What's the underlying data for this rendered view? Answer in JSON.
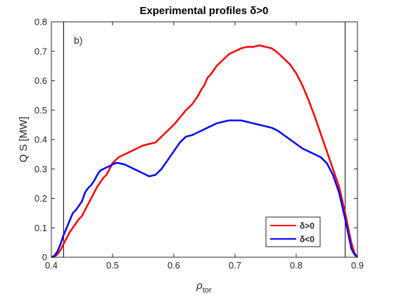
{
  "chart_data": {
    "type": "line",
    "title": "Experimental profiles δ>0",
    "panel_label": "b)",
    "xlabel_main": "ρ",
    "xlabel_sub": "tor",
    "ylabel": "Q S [MW]",
    "xlim": [
      0.4,
      0.9
    ],
    "ylim": [
      0,
      0.8
    ],
    "xticks": [
      0.4,
      0.5,
      0.6,
      0.7,
      0.8,
      0.9
    ],
    "xtick_labels": [
      "0.4",
      "0.5",
      "0.6",
      "0.7",
      "0.8",
      "0.9"
    ],
    "yticks": [
      0,
      0.1,
      0.2,
      0.3,
      0.4,
      0.5,
      0.6,
      0.7,
      0.8
    ],
    "ytick_labels": [
      "0",
      "0.1",
      "0.2",
      "0.3",
      "0.4",
      "0.5",
      "0.6",
      "0.7",
      "0.8"
    ],
    "vlines": [
      0.42,
      0.88
    ],
    "grid": false,
    "legend_position": "bottom-right",
    "series": [
      {
        "name": "δ>0",
        "color": "#ff0000",
        "x": [
          0.4,
          0.405,
          0.41,
          0.415,
          0.42,
          0.425,
          0.43,
          0.435,
          0.44,
          0.445,
          0.45,
          0.455,
          0.46,
          0.465,
          0.47,
          0.475,
          0.48,
          0.485,
          0.49,
          0.495,
          0.5,
          0.505,
          0.51,
          0.52,
          0.53,
          0.54,
          0.55,
          0.56,
          0.57,
          0.58,
          0.59,
          0.6,
          0.61,
          0.62,
          0.63,
          0.635,
          0.64,
          0.645,
          0.65,
          0.655,
          0.66,
          0.67,
          0.68,
          0.69,
          0.7,
          0.71,
          0.72,
          0.73,
          0.74,
          0.75,
          0.76,
          0.77,
          0.78,
          0.79,
          0.8,
          0.81,
          0.82,
          0.83,
          0.84,
          0.85,
          0.86,
          0.87,
          0.875,
          0.88,
          0.885,
          0.89,
          0.895,
          0.9
        ],
        "values": [
          0.0,
          0.002,
          0.01,
          0.025,
          0.045,
          0.065,
          0.085,
          0.1,
          0.115,
          0.13,
          0.14,
          0.16,
          0.18,
          0.2,
          0.22,
          0.24,
          0.255,
          0.27,
          0.28,
          0.3,
          0.32,
          0.33,
          0.34,
          0.35,
          0.36,
          0.37,
          0.38,
          0.385,
          0.39,
          0.41,
          0.43,
          0.45,
          0.475,
          0.5,
          0.52,
          0.535,
          0.55,
          0.57,
          0.585,
          0.61,
          0.62,
          0.65,
          0.67,
          0.69,
          0.7,
          0.71,
          0.715,
          0.715,
          0.72,
          0.715,
          0.71,
          0.695,
          0.675,
          0.655,
          0.625,
          0.585,
          0.535,
          0.48,
          0.42,
          0.36,
          0.3,
          0.24,
          0.195,
          0.15,
          0.1,
          0.05,
          0.015,
          0.0
        ]
      },
      {
        "name": "δ<0",
        "color": "#0000ff",
        "x": [
          0.4,
          0.405,
          0.41,
          0.415,
          0.42,
          0.425,
          0.43,
          0.435,
          0.44,
          0.445,
          0.45,
          0.455,
          0.46,
          0.465,
          0.47,
          0.475,
          0.48,
          0.485,
          0.49,
          0.495,
          0.5,
          0.505,
          0.51,
          0.52,
          0.53,
          0.54,
          0.55,
          0.56,
          0.57,
          0.58,
          0.59,
          0.6,
          0.61,
          0.62,
          0.63,
          0.635,
          0.64,
          0.645,
          0.65,
          0.655,
          0.66,
          0.67,
          0.68,
          0.69,
          0.7,
          0.71,
          0.72,
          0.73,
          0.74,
          0.75,
          0.76,
          0.77,
          0.78,
          0.79,
          0.8,
          0.81,
          0.82,
          0.83,
          0.84,
          0.85,
          0.86,
          0.87,
          0.875,
          0.88,
          0.885,
          0.89,
          0.895,
          0.9
        ],
        "values": [
          0.0,
          0.005,
          0.02,
          0.045,
          0.075,
          0.1,
          0.125,
          0.15,
          0.16,
          0.175,
          0.19,
          0.22,
          0.235,
          0.245,
          0.26,
          0.28,
          0.295,
          0.3,
          0.305,
          0.31,
          0.315,
          0.32,
          0.32,
          0.315,
          0.305,
          0.295,
          0.285,
          0.275,
          0.28,
          0.3,
          0.33,
          0.36,
          0.39,
          0.41,
          0.415,
          0.42,
          0.425,
          0.43,
          0.435,
          0.44,
          0.445,
          0.455,
          0.46,
          0.465,
          0.465,
          0.465,
          0.46,
          0.455,
          0.45,
          0.445,
          0.44,
          0.43,
          0.415,
          0.4,
          0.385,
          0.37,
          0.36,
          0.35,
          0.34,
          0.32,
          0.28,
          0.22,
          0.175,
          0.13,
          0.08,
          0.03,
          0.01,
          0.0
        ]
      }
    ]
  }
}
